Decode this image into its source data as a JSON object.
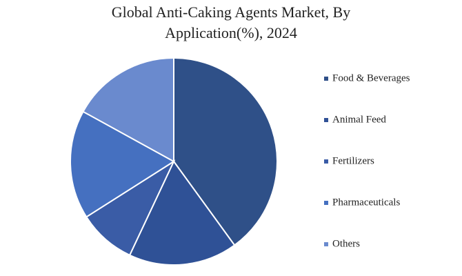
{
  "chart_data": {
    "type": "pie",
    "title": "Global Anti-Caking Agents Market, By Application(%), 2024",
    "categories": [
      "Food & Beverages",
      "Animal Feed",
      "Fertilizers",
      "Pharmaceuticals",
      "Others"
    ],
    "values": [
      40,
      17,
      9,
      17,
      17
    ],
    "colors": [
      "#2f5088",
      "#2f5196",
      "#3a5ca6",
      "#4570c0",
      "#6a8ace"
    ]
  }
}
